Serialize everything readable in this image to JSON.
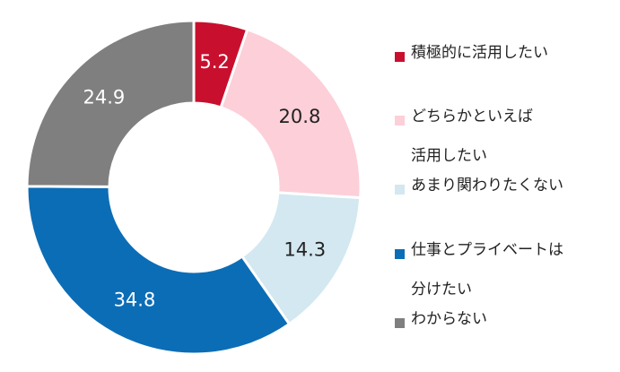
{
  "chart_data": {
    "type": "donut",
    "title": "",
    "slices": [
      {
        "label": "積極的に活用したい",
        "value": 5.2,
        "value_label": "5.2",
        "color": "#c8102e",
        "label_color": "#ffffff"
      },
      {
        "label": "どちらかといえば\n活用したい",
        "value": 20.8,
        "value_label": "20.8",
        "color": "#fccfd9",
        "label_color": "#222222"
      },
      {
        "label": "あまり関わりたくない",
        "value": 14.3,
        "value_label": "14.3",
        "color": "#d3e8f0",
        "label_color": "#222222"
      },
      {
        "label": "仕事とプライベートは\n分けたい",
        "value": 34.8,
        "value_label": "34.8",
        "color": "#0b6db6",
        "label_color": "#ffffff"
      },
      {
        "label": "わからない",
        "value": 24.9,
        "value_label": "24.9",
        "color": "#7f7f7f",
        "label_color": "#ffffff"
      }
    ],
    "legend_position": "right",
    "start_angle": "12 o'clock",
    "direction": "clockwise"
  }
}
